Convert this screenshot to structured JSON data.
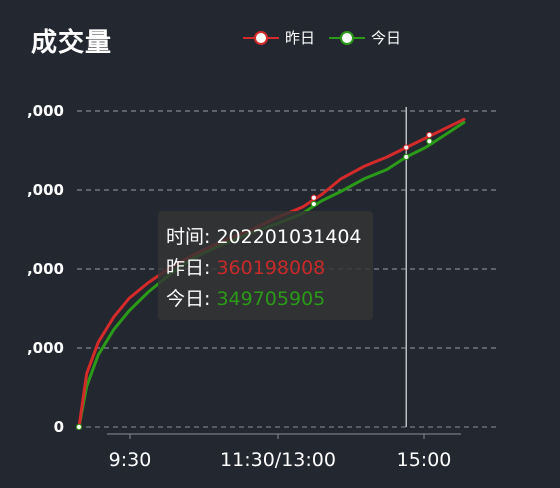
{
  "header": {
    "title": "成交量"
  },
  "legend": {
    "items": [
      {
        "label": "昨日",
        "color": "#d42a2a"
      },
      {
        "label": "今日",
        "color": "#2a9a18"
      }
    ]
  },
  "tooltip": {
    "time_label": "时间:",
    "time_value": "202201031404",
    "yesterday_label": "昨日:",
    "yesterday_value": "360198008",
    "today_label": "今日:",
    "today_value": "349705905"
  },
  "chart_data": {
    "type": "line",
    "title": "成交量",
    "y_tick_labels": [
      ",000",
      ",000",
      ",000",
      ",000",
      "0"
    ],
    "x_tick_labels": [
      "9:30",
      "11:30/13:00",
      "15:00"
    ],
    "grid": true,
    "legend_position": "top",
    "ylim": [
      0,
      1
    ],
    "x_range": [
      0,
      1
    ],
    "series": [
      {
        "name": "昨日",
        "color": "#d42a2a",
        "x": [
          0,
          0.02,
          0.05,
          0.09,
          0.13,
          0.18,
          0.24,
          0.3,
          0.37,
          0.45,
          0.52,
          0.58,
          0.63,
          0.68,
          0.74,
          0.8,
          0.85,
          0.9,
          0.95,
          1
        ],
        "values": [
          0,
          0.17,
          0.27,
          0.35,
          0.41,
          0.46,
          0.51,
          0.55,
          0.59,
          0.63,
          0.67,
          0.7,
          0.74,
          0.79,
          0.83,
          0.86,
          0.89,
          0.92,
          0.95,
          0.98
        ]
      },
      {
        "name": "今日",
        "color": "#2a9a18",
        "x": [
          0,
          0.02,
          0.05,
          0.09,
          0.13,
          0.18,
          0.24,
          0.3,
          0.37,
          0.45,
          0.52,
          0.58,
          0.63,
          0.68,
          0.74,
          0.8,
          0.85,
          0.9,
          0.95,
          1
        ],
        "values": [
          0,
          0.13,
          0.23,
          0.31,
          0.37,
          0.43,
          0.49,
          0.54,
          0.58,
          0.62,
          0.65,
          0.68,
          0.72,
          0.75,
          0.79,
          0.82,
          0.86,
          0.89,
          0.93,
          0.97
        ]
      }
    ],
    "markers": [
      {
        "series": "昨日",
        "x": 0.0,
        "value": 0.0
      },
      {
        "series": "今日",
        "x": 0.0,
        "value": 0.0
      },
      {
        "series": "昨日",
        "x": 0.61,
        "value": 0.73
      },
      {
        "series": "今日",
        "x": 0.61,
        "value": 0.71
      },
      {
        "series": "昨日",
        "x": 0.85,
        "value": 0.89
      },
      {
        "series": "今日",
        "x": 0.85,
        "value": 0.86
      },
      {
        "series": "昨日",
        "x": 0.91,
        "value": 0.93
      },
      {
        "series": "今日",
        "x": 0.91,
        "value": 0.91
      }
    ],
    "crosshair_x": 0.85
  }
}
